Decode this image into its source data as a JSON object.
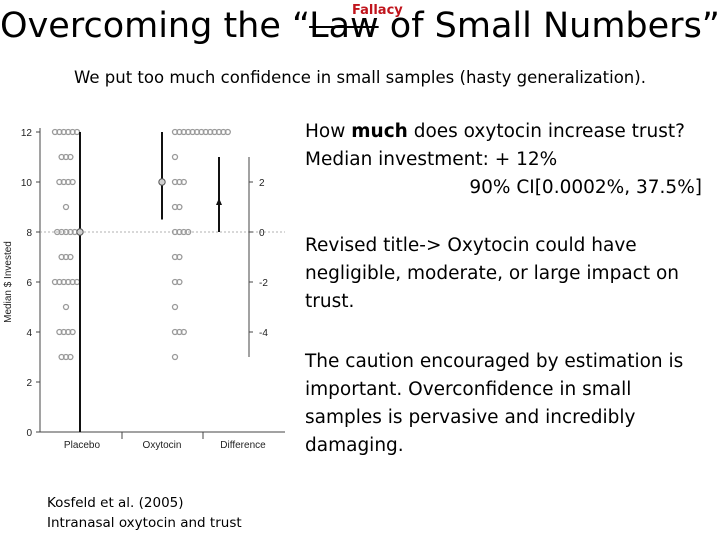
{
  "slide": {
    "title_before": "Overcoming the “",
    "title_struck": "Law",
    "title_after": " of Small Numbers”",
    "title_annotation": "Fallacy",
    "subtitle": "We put too much confidence in small samples (hasty generalization).",
    "question_pre": "How ",
    "question_bold": "much",
    "question_post": " does oxytocin increase trust?",
    "median_line": "Median investment: + 12%",
    "ci_line": "90% CI[0.0002%, 37.5%]",
    "revised": "Revised title-> Oxytocin could have negligible, moderate, or large impact on trust.",
    "caution": "The caution encouraged by estimation is important.  Overconfidence in small samples is pervasive and incredibly damaging.",
    "citation_line1": "Kosfeld et al. (2005)",
    "citation_line2": "Intranasal oxytocin and trust",
    "colors": {
      "fallacy": "#c0141c",
      "dots": "#9a9a9a",
      "axis": "#444444"
    }
  },
  "chart_data": {
    "type": "scatter",
    "ylabel": "Median $ Invested",
    "y_ticks": [
      0,
      2,
      4,
      6,
      8,
      10,
      12
    ],
    "ylim": [
      0,
      12
    ],
    "categories": [
      "Placebo",
      "Oxytocin",
      "Difference"
    ],
    "diff_axis_ticks": [
      2,
      0,
      -2,
      -4
    ],
    "reference_line_y": 8,
    "grid": false,
    "series": [
      {
        "category": "Placebo",
        "points": [
          {
            "y": 12,
            "n": 6
          },
          {
            "y": 11,
            "n": 3
          },
          {
            "y": 10,
            "n": 4
          },
          {
            "y": 9,
            "n": 1
          },
          {
            "y": 8,
            "n": 5
          },
          {
            "y": 7,
            "n": 3
          },
          {
            "y": 6,
            "n": 6
          },
          {
            "y": 5,
            "n": 1
          },
          {
            "y": 4,
            "n": 4
          },
          {
            "y": 3,
            "n": 3
          }
        ],
        "median": 8,
        "ci": [
          0,
          12
        ]
      },
      {
        "category": "Oxytocin",
        "points": [
          {
            "y": 12,
            "n": 13
          },
          {
            "y": 11,
            "n": 1
          },
          {
            "y": 10,
            "n": 3
          },
          {
            "y": 9,
            "n": 2
          },
          {
            "y": 8,
            "n": 4
          },
          {
            "y": 7,
            "n": 2
          },
          {
            "y": 6,
            "n": 2
          },
          {
            "y": 5,
            "n": 1
          },
          {
            "y": 4,
            "n": 3
          },
          {
            "y": 3,
            "n": 1
          }
        ],
        "median": 10,
        "ci": [
          8.5,
          12
        ]
      },
      {
        "category": "Difference",
        "median": 1.2,
        "ci": [
          0,
          3
        ]
      }
    ]
  }
}
